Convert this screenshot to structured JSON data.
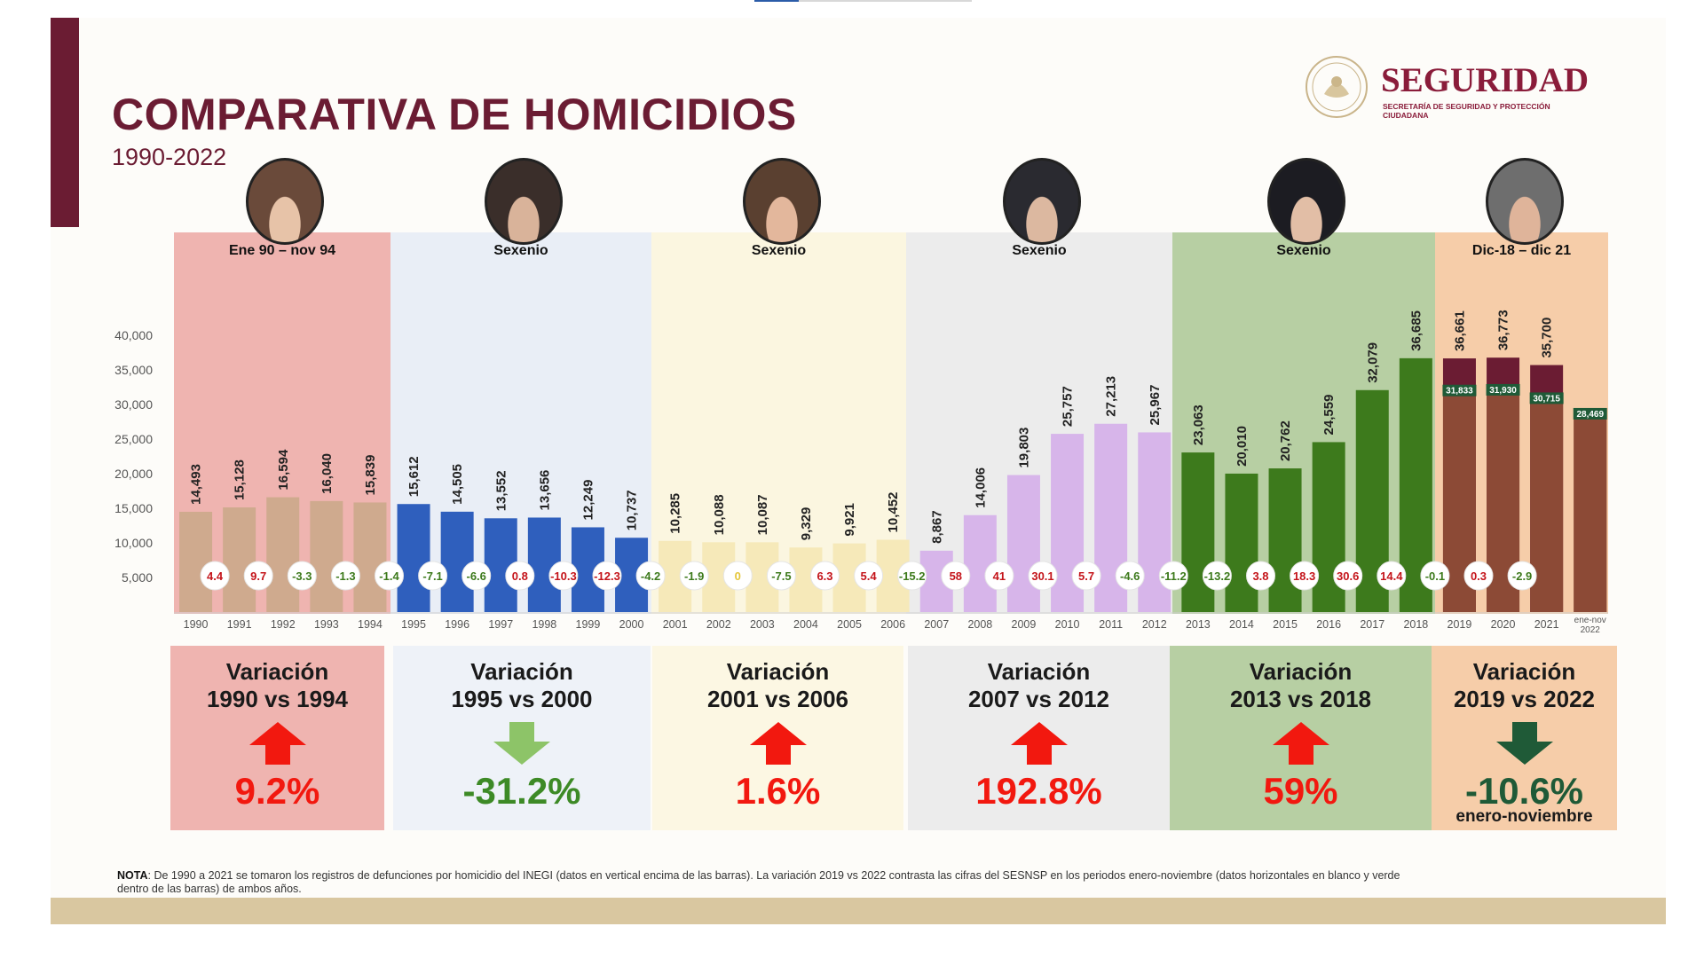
{
  "header": {
    "title": "COMPARATIVA DE HOMICIDIOS",
    "subtitle": "1990-2022",
    "logo_name": "SEGURIDAD",
    "logo_sub": "SECRETARÍA DE SEGURIDAD Y PROTECCIÓN CIUDADANA"
  },
  "panels": [
    {
      "label": "Ene 90 – nov 94",
      "color": "#efb4b0"
    },
    {
      "label": "Sexenio",
      "color": "#e9eef6"
    },
    {
      "label": "Sexenio",
      "color": "#fbf6e0"
    },
    {
      "label": "Sexenio",
      "color": "#ececec"
    },
    {
      "label": "Sexenio",
      "color": "#b7cfa3"
    },
    {
      "label": "Dic-18 – dic 21",
      "color": "#f6cda9"
    }
  ],
  "chart_data": {
    "type": "bar",
    "title": "COMPARATIVA DE HOMICIDIOS",
    "subtitle": "1990-2022",
    "categories": [
      "1990",
      "1991",
      "1992",
      "1993",
      "1994",
      "1995",
      "1996",
      "1997",
      "1998",
      "1999",
      "2000",
      "2001",
      "2002",
      "2003",
      "2004",
      "2005",
      "2006",
      "2007",
      "2008",
      "2009",
      "2010",
      "2011",
      "2012",
      "2013",
      "2014",
      "2015",
      "2016",
      "2017",
      "2018",
      "2019",
      "2020",
      "2021",
      "ene-nov 2022"
    ],
    "values": [
      14493,
      15128,
      16594,
      16040,
      15839,
      15612,
      14505,
      13552,
      13656,
      12249,
      10737,
      10285,
      10088,
      10087,
      9329,
      9921,
      10452,
      8867,
      14006,
      19803,
      25757,
      27213,
      25967,
      23063,
      20010,
      20762,
      24559,
      32079,
      36685,
      36661,
      36773,
      35700,
      28469
    ],
    "value_labels": [
      "14,493",
      "15,128",
      "16,594",
      "16,040",
      "15,839",
      "15,612",
      "14,505",
      "13,552",
      "13,656",
      "12,249",
      "10,737",
      "10,285",
      "10,088",
      "10,087",
      "9,329",
      "9,921",
      "10,452",
      "8,867",
      "14,006",
      "19,803",
      "25,757",
      "27,213",
      "25,967",
      "23,063",
      "20,010",
      "20,762",
      "24,559",
      "32,079",
      "36,685",
      "36,661",
      "36,773",
      "35,700",
      ""
    ],
    "enero_noviembre": {
      "categories": [
        "2019",
        "2020",
        "2021",
        "ene-nov 2022"
      ],
      "values": [
        31833,
        31930,
        30715,
        28469
      ],
      "labels": [
        "31,833",
        "31,930",
        "30,715",
        "28,469"
      ]
    },
    "variations": [
      "4.4",
      "9.7",
      "-3.3",
      "-1.3",
      "-1.4",
      "-7.1",
      "-6.6",
      "0.8",
      "-10.3",
      "-12.3",
      "-4.2",
      "-1.9",
      "0",
      "-7.5",
      "6.3",
      "5.4",
      "-15.2",
      "58",
      "41",
      "30.1",
      "5.7",
      "-4.6",
      "-11.2",
      "-13.2",
      "3.8",
      "18.3",
      "30.6",
      "14.4",
      "-0.1",
      "0.3",
      "-2.9"
    ],
    "variation_colors": [
      "red",
      "red",
      "green",
      "green",
      "green",
      "green",
      "green",
      "red",
      "red",
      "red",
      "green",
      "green",
      "gold",
      "green",
      "red",
      "red",
      "green",
      "red",
      "red",
      "red",
      "red",
      "green",
      "green",
      "green",
      "red",
      "red",
      "red",
      "red",
      "green",
      "red",
      "green"
    ],
    "bar_colors": [
      "#cfaa8e",
      "#cfaa8e",
      "#cfaa8e",
      "#cfaa8e",
      "#cfaa8e",
      "#2f5fbd",
      "#2f5fbd",
      "#2f5fbd",
      "#2f5fbd",
      "#2f5fbd",
      "#2f5fbd",
      "#f6e9b9",
      "#f6e9b9",
      "#f6e9b9",
      "#f6e9b9",
      "#f6e9b9",
      "#f6e9b9",
      "#d7b5ea",
      "#d7b5ea",
      "#d7b5ea",
      "#d7b5ea",
      "#d7b5ea",
      "#d7b5ea",
      "#3d7a1c",
      "#3d7a1c",
      "#3d7a1c",
      "#3d7a1c",
      "#3d7a1c",
      "#3d7a1c",
      "#6b1c33",
      "#6b1c33",
      "#6b1c33",
      "#8c4a36"
    ],
    "y_ticks": [
      "5,000",
      "10,000",
      "15,000",
      "20,000",
      "25,000",
      "30,000",
      "35,000",
      "40,000"
    ],
    "ylim": [
      0,
      40000
    ],
    "xlabel": "",
    "ylabel": ""
  },
  "variation_boxes": [
    {
      "title1": "Variación",
      "title2": "1990 vs 1994",
      "value": "9.2%",
      "direction": "up",
      "color": "#f2180f",
      "arrow": "#f2180f",
      "bg": "#efb4b0",
      "note": ""
    },
    {
      "title1": "Variación",
      "title2": "1995 vs 2000",
      "value": "-31.2%",
      "direction": "down",
      "color": "#3d8a26",
      "arrow": "#8dc468",
      "bg": "#eef2f8",
      "note": ""
    },
    {
      "title1": "Variación",
      "title2": "2001 vs 2006",
      "value": "1.6%",
      "direction": "up",
      "color": "#f2180f",
      "arrow": "#f2180f",
      "bg": "#fcf7e3",
      "note": ""
    },
    {
      "title1": "Variación",
      "title2": "2007 vs 2012",
      "value": "192.8%",
      "direction": "up",
      "color": "#f2180f",
      "arrow": "#f2180f",
      "bg": "#ececec",
      "note": ""
    },
    {
      "title1": "Variación",
      "title2": "2013 vs 2018",
      "value": "59%",
      "direction": "up",
      "color": "#f2180f",
      "arrow": "#f2180f",
      "bg": "#b7cfa3",
      "note": ""
    },
    {
      "title1": "Variación",
      "title2": "2019 vs 2022",
      "value": "-10.6%",
      "direction": "down",
      "color": "#1f5a37",
      "arrow": "#1f5a37",
      "bg": "#f6cda9",
      "note": "enero-noviembre"
    }
  ],
  "note": {
    "bold": "NOTA",
    "text": ": De 1990 a 2021 se tomaron los registros de defunciones por homicidio del INEGI (datos en vertical encima de las barras). La variación 2019 vs 2022 contrasta las cifras del SESNSP en los periodos enero-noviembre (datos horizontales en blanco y verde dentro de las barras) de ambos años."
  }
}
